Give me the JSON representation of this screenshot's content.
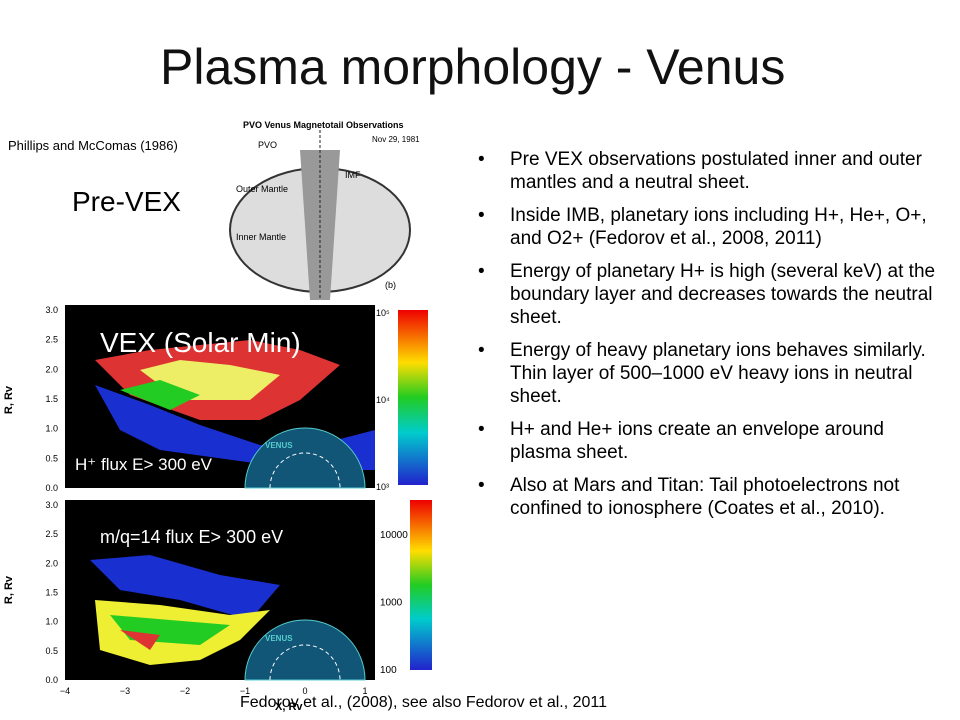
{
  "title": "Plasma morphology - Venus",
  "pre_vex": {
    "citation": "Phillips and McComas (1986)",
    "label": "Pre-VEX",
    "figure": {
      "title": "PVO Venus Magnetotail Observations",
      "date": "Nov 29, 1981",
      "pvo": "PVO",
      "imf": "IMF",
      "outer_mantle": "Outer Mantle",
      "inner_mantle": "Inner Mantle",
      "panel": "(b)"
    }
  },
  "vex": {
    "title": "VEX (Solar Min)",
    "y_axis_label": "R, Rv",
    "x_axis_label": "X, Rv",
    "y_ticks": [
      "3.0",
      "2.5",
      "2.0",
      "1.5",
      "1.0",
      "0.5",
      "0.0"
    ],
    "x_ticks": [
      "−4",
      "−3",
      "−2",
      "−1",
      "0",
      "1"
    ],
    "venus_label": "VENUS",
    "panels": [
      {
        "label": "H⁺ flux E> 300 eV",
        "colorbar": [
          "10⁵",
          "10⁴",
          "10³"
        ]
      },
      {
        "label": "m/q=14 flux E> 300 eV",
        "colorbar": [
          "10000",
          "1000",
          "100"
        ]
      }
    ]
  },
  "bullets": [
    "Pre VEX observations postulated inner and outer mantles and a neutral sheet.",
    "Inside IMB, planetary ions including H+, He+, O+, and O2+ (Fedorov et al., 2008, 2011)",
    "Energy of planetary H+ is high (several keV) at the boundary layer and decreases towards the neutral sheet.",
    "Energy of heavy planetary ions behaves similarly. Thin layer of 500–1000 eV heavy ions in neutral sheet.",
    "H+ and He+ ions create an envelope around plasma sheet.",
    "Also at Mars and Titan: Tail photoelectrons not confined to ionosphere (Coates et al., 2010)."
  ],
  "footer": "Fedorov et al., (2008), see also Fedorov et al., 2011"
}
